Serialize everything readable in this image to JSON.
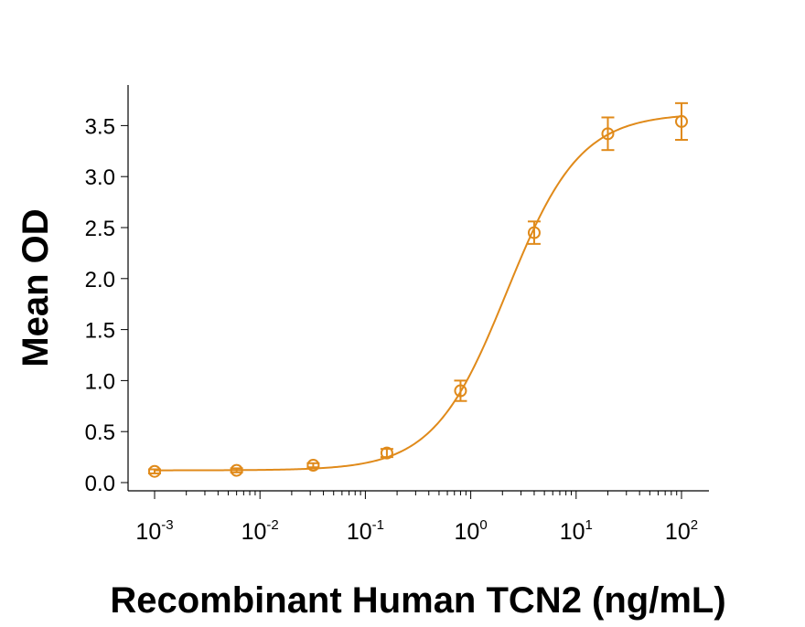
{
  "chart_data": {
    "type": "scatter",
    "title": "",
    "xlabel": "Recombinant Human TCN2 (ng/mL)",
    "ylabel": "Mean OD",
    "xscale": "log",
    "xlim": [
      0.001,
      100
    ],
    "ylim": [
      0.0,
      3.5
    ],
    "x_ticks": [
      {
        "base": "10",
        "exp": "-3",
        "value": 0.001
      },
      {
        "base": "10",
        "exp": "-2",
        "value": 0.01
      },
      {
        "base": "10",
        "exp": "-1",
        "value": 0.1
      },
      {
        "base": "10",
        "exp": "0",
        "value": 1
      },
      {
        "base": "10",
        "exp": "1",
        "value": 10
      },
      {
        "base": "10",
        "exp": "2",
        "value": 100
      }
    ],
    "y_ticks": [
      "0.0",
      "0.5",
      "1.0",
      "1.5",
      "2.0",
      "2.5",
      "3.0",
      "3.5"
    ],
    "grid": false,
    "color": "#E08A1A",
    "series": [
      {
        "x": [
          0.001,
          0.006,
          0.032,
          0.16,
          0.8,
          4.0,
          20,
          100
        ],
        "y": [
          0.11,
          0.12,
          0.17,
          0.29,
          0.9,
          2.45,
          3.42,
          3.54
        ],
        "err": [
          0.02,
          0.02,
          0.02,
          0.04,
          0.1,
          0.11,
          0.16,
          0.18
        ]
      }
    ],
    "fit": {
      "type": "4PL",
      "bottom": 0.12,
      "top": 3.62,
      "ec50": 2.2,
      "hill": 1.25
    }
  }
}
